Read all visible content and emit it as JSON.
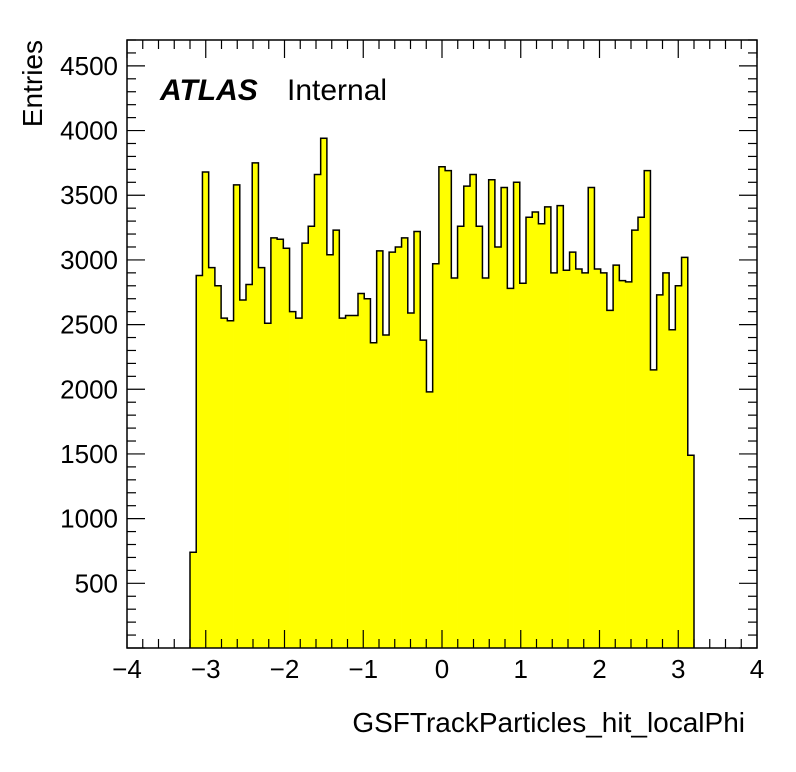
{
  "chart_data": {
    "type": "histogram",
    "xlabel": "GSFTrackParticles_hit_localPhi",
    "ylabel": "Entries",
    "xlim": [
      -4,
      4
    ],
    "ylim": [
      0,
      4700
    ],
    "x_ticks": [
      -4,
      -3,
      -2,
      -1,
      0,
      1,
      2,
      3,
      4
    ],
    "x_tick_labels": [
      "−4",
      "−3",
      "−2",
      "−1",
      "0",
      "1",
      "2",
      "3",
      "4"
    ],
    "y_ticks": [
      500,
      1000,
      1500,
      2000,
      2500,
      3000,
      3500,
      4000,
      4500
    ],
    "y_tick_labels": [
      "500",
      "1000",
      "1500",
      "2000",
      "2500",
      "3000",
      "3500",
      "4000",
      "4500"
    ],
    "bins": {
      "x_low": -3.2,
      "x_high": 3.2,
      "values": [
        740,
        2880,
        3680,
        2940,
        2800,
        2550,
        2530,
        3580,
        2690,
        2810,
        3750,
        2940,
        2510,
        3170,
        3160,
        3090,
        2600,
        2550,
        3130,
        3260,
        3660,
        3940,
        3040,
        3230,
        2550,
        2570,
        2570,
        2740,
        2700,
        2360,
        3070,
        2420,
        3060,
        3100,
        3170,
        2590,
        3220,
        2380,
        1980,
        2970,
        3720,
        3690,
        2860,
        3260,
        3570,
        3660,
        3260,
        2860,
        3620,
        3100,
        3560,
        2780,
        3600,
        2820,
        3330,
        3370,
        3280,
        3410,
        2900,
        3420,
        2920,
        3060,
        2930,
        2900,
        3560,
        2930,
        2900,
        2610,
        2960,
        2840,
        2830,
        3230,
        3330,
        3690,
        2150,
        2730,
        2900,
        2460,
        2800,
        3020,
        1490
      ]
    },
    "fill_color": "#ffff00",
    "line_color": "#000000",
    "grid": false,
    "annotations": [
      {
        "text": "ATLAS",
        "style": "bold-italic"
      },
      {
        "text": "Internal",
        "style": "normal"
      }
    ]
  }
}
